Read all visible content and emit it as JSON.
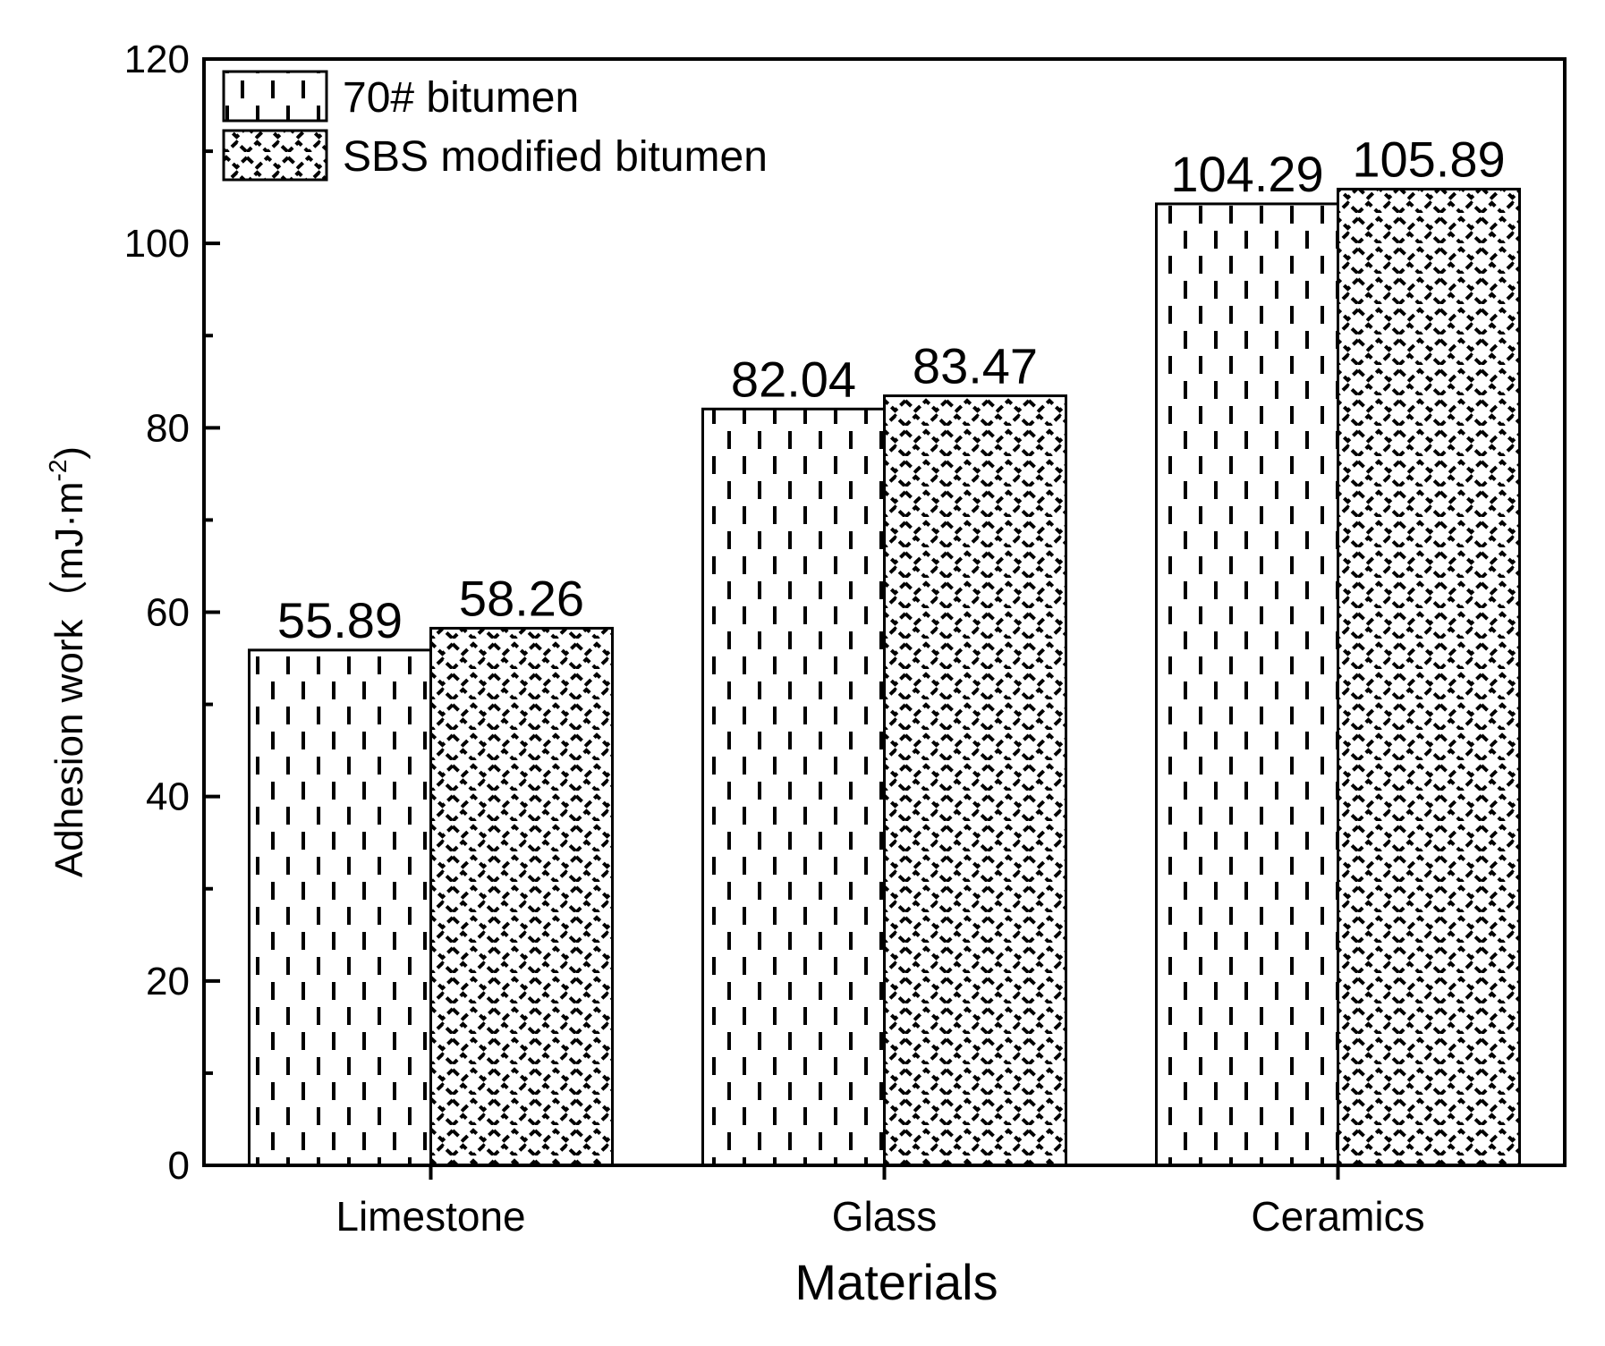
{
  "chart_data": {
    "type": "bar",
    "categories": [
      "Limestone",
      "Glass",
      "Ceramics"
    ],
    "series": [
      {
        "name": "70# bitumen",
        "values": [
          55.89,
          82.04,
          104.29
        ],
        "labels": [
          "55.89",
          "82.04",
          "104.29"
        ],
        "pattern": "dashes"
      },
      {
        "name": "SBS modified bitumen",
        "values": [
          58.26,
          83.47,
          105.89
        ],
        "labels": [
          "58.26",
          "83.47",
          "105.89"
        ],
        "pattern": "waves"
      }
    ],
    "xlabel": "Materials",
    "ylabel": "Adhesion work（mJ·m",
    "ylabel_sup": "-2",
    "ylabel_close": ")",
    "ylim": [
      0,
      120
    ],
    "yticks": [
      "0",
      "20",
      "40",
      "60",
      "80",
      "100",
      "120"
    ],
    "legend_position": "top-left",
    "grid": false,
    "colors": {
      "stroke": "#000000",
      "fill": "#ffffff"
    }
  }
}
